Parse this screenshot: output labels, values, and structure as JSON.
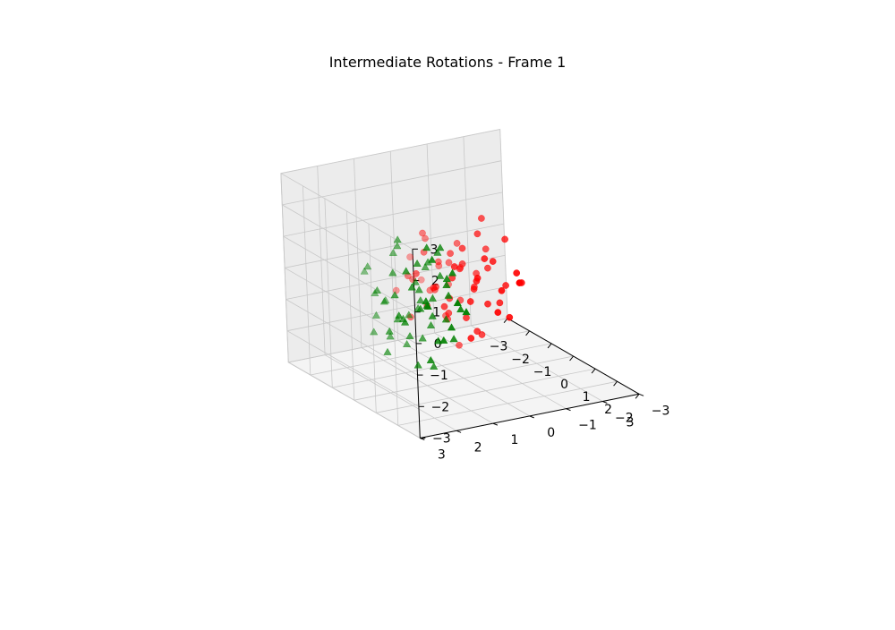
{
  "chart_data": {
    "type": "scatter",
    "projection": "3d",
    "title": "Intermediate Rotations - Frame 1",
    "xlabel": "",
    "ylabel": "",
    "zlabel": "",
    "xlim": [
      -3,
      3
    ],
    "ylim": [
      -3,
      3
    ],
    "zlim": [
      -3,
      3
    ],
    "x_ticks": [
      "−3",
      "−2",
      "−1",
      "0",
      "1",
      "2",
      "3"
    ],
    "y_ticks": [
      "−3",
      "−2",
      "−1",
      "0",
      "1",
      "2",
      "3"
    ],
    "z_ticks": [
      "−3",
      "−2",
      "−1",
      "0",
      "1",
      "2",
      "3"
    ],
    "grid": true,
    "series": [
      {
        "marker": "circle",
        "color": "#ff0000",
        "points": [
          [
            -0.5,
            -0.3,
            0.2
          ],
          [
            -0.2,
            -0.5,
            -0.3
          ],
          [
            -0.8,
            0.1,
            0.4
          ],
          [
            0.3,
            -0.2,
            -0.1
          ],
          [
            -1.1,
            -0.6,
            0.7
          ],
          [
            0.1,
            0.4,
            -0.8
          ],
          [
            -0.4,
            -1.0,
            0.1
          ],
          [
            0.6,
            -0.1,
            0.3
          ],
          [
            -0.9,
            0.3,
            -0.5
          ],
          [
            0.2,
            -0.8,
            0.6
          ],
          [
            -0.3,
            0.2,
            -1.2
          ],
          [
            0.4,
            -0.5,
            -0.6
          ],
          [
            -1.3,
            -0.2,
            0.0
          ],
          [
            -0.6,
            0.6,
            0.9
          ],
          [
            0.8,
            0.2,
            -0.2
          ],
          [
            -0.1,
            -1.3,
            -0.4
          ],
          [
            -0.7,
            -0.4,
            -0.9
          ],
          [
            0.5,
            0.5,
            0.5
          ],
          [
            -1.0,
            0.7,
            -0.1
          ],
          [
            0.0,
            -0.1,
            1.1
          ],
          [
            -0.2,
            0.8,
            -0.6
          ],
          [
            0.9,
            -0.6,
            0.0
          ],
          [
            -1.5,
            -0.9,
            -0.3
          ],
          [
            -0.4,
            0.0,
            0.8
          ],
          [
            0.3,
            0.9,
            0.2
          ],
          [
            -0.8,
            -1.2,
            0.5
          ],
          [
            0.7,
            -0.9,
            -1.0
          ],
          [
            -0.5,
            0.4,
            -0.3
          ],
          [
            -1.2,
            0.2,
            1.0
          ],
          [
            0.2,
            -0.3,
            -1.5
          ],
          [
            -0.3,
            -0.7,
            1.3
          ],
          [
            1.0,
            0.1,
            0.6
          ],
          [
            -0.9,
            -0.1,
            -1.4
          ],
          [
            -0.1,
            0.6,
            0.0
          ],
          [
            0.6,
            -1.2,
            0.3
          ],
          [
            -1.6,
            0.4,
            0.3
          ],
          [
            0.4,
            0.1,
            -0.9
          ],
          [
            -0.6,
            -0.8,
            -0.1
          ],
          [
            1.2,
            -0.3,
            -0.5
          ],
          [
            -0.2,
            -0.2,
            0.5
          ],
          [
            -0.7,
            1.0,
            0.2
          ],
          [
            0.1,
            -1.0,
            -0.8
          ],
          [
            -1.4,
            -0.5,
            -0.7
          ],
          [
            0.8,
            0.6,
            1.0
          ],
          [
            -0.4,
            -1.5,
            0.9
          ],
          [
            0.0,
            0.3,
            -0.4
          ],
          [
            -1.0,
            -0.3,
            0.2
          ],
          [
            0.5,
            -0.4,
            0.9
          ],
          [
            -0.3,
            1.2,
            -0.9
          ],
          [
            1.1,
            0.4,
            -1.2
          ],
          [
            -0.8,
            0.5,
            1.4
          ],
          [
            0.3,
            -1.5,
            -0.2
          ],
          [
            -1.8,
            0.0,
            -0.6
          ],
          [
            -0.1,
            -0.6,
            -1.8
          ],
          [
            0.6,
            0.8,
            -0.3
          ],
          [
            -0.5,
            -0.2,
            -2.2
          ],
          [
            1.4,
            -0.8,
            0.4
          ],
          [
            -1.1,
            1.1,
            -0.4
          ],
          [
            0.2,
            1.3,
            0.7
          ],
          [
            -0.6,
            -1.0,
            1.6
          ]
        ]
      },
      {
        "marker": "triangle",
        "color": "#008000",
        "points": [
          [
            0.5,
            1.5,
            0.6
          ],
          [
            1.2,
            1.8,
            0.1
          ],
          [
            0.8,
            2.2,
            -0.3
          ],
          [
            1.6,
            1.3,
            0.9
          ],
          [
            0.3,
            2.5,
            0.4
          ],
          [
            1.0,
            1.0,
            -0.5
          ],
          [
            1.9,
            2.0,
            0.5
          ],
          [
            0.6,
            1.2,
            1.2
          ],
          [
            1.4,
            2.6,
            0.8
          ],
          [
            0.9,
            1.6,
            -1.0
          ],
          [
            2.1,
            1.5,
            -0.2
          ],
          [
            0.2,
            1.9,
            1.5
          ],
          [
            1.7,
            2.3,
            1.1
          ],
          [
            1.1,
            1.4,
            0.3
          ],
          [
            0.7,
            2.8,
            -0.6
          ],
          [
            1.5,
            1.1,
            -0.9
          ],
          [
            0.4,
            1.4,
            -0.3
          ],
          [
            2.0,
            2.7,
            0.2
          ],
          [
            1.3,
            1.9,
            1.6
          ],
          [
            0.8,
            1.0,
            0.8
          ],
          [
            1.8,
            1.7,
            -0.7
          ],
          [
            0.1,
            2.1,
            0.0
          ],
          [
            1.0,
            2.4,
            1.3
          ],
          [
            1.6,
            2.9,
            -0.2
          ],
          [
            0.5,
            1.8,
            -1.3
          ],
          [
            2.2,
            2.2,
            0.7
          ],
          [
            1.2,
            1.2,
            1.9
          ],
          [
            0.9,
            2.6,
            0.4
          ],
          [
            1.4,
            1.6,
            -0.1
          ],
          [
            0.3,
            1.1,
            0.9
          ],
          [
            1.9,
            1.3,
            1.4
          ],
          [
            0.6,
            2.3,
            -0.9
          ],
          [
            1.1,
            2.9,
            0.9
          ],
          [
            2.4,
            1.9,
            -0.4
          ],
          [
            0.7,
            1.5,
            0.1
          ],
          [
            1.5,
            2.1,
            -1.5
          ],
          [
            0.2,
            2.7,
            1.1
          ],
          [
            1.8,
            2.5,
            1.7
          ],
          [
            1.0,
            1.7,
            0.6
          ],
          [
            2.3,
            1.2,
            0.3
          ],
          [
            0.4,
            1.9,
            1.8
          ],
          [
            1.3,
            2.8,
            -1.0
          ],
          [
            0.8,
            1.3,
            -0.7
          ],
          [
            1.7,
            1.0,
            0.1
          ],
          [
            2.5,
            2.4,
            1.0
          ],
          [
            0.6,
            2.0,
            2.1
          ],
          [
            1.2,
            1.5,
            -1.8
          ],
          [
            1.9,
            2.8,
            0.4
          ],
          [
            0.3,
            1.6,
            -0.5
          ],
          [
            1.6,
            1.8,
            2.2
          ],
          [
            2.1,
            2.1,
            -1.1
          ],
          [
            0.9,
            1.1,
            1.6
          ],
          [
            1.4,
            2.4,
            0.0
          ],
          [
            0.5,
            2.6,
            -0.2
          ],
          [
            2.6,
            1.6,
            0.8
          ],
          [
            1.0,
            2.0,
            -0.8
          ],
          [
            1.8,
            1.4,
            1.2
          ],
          [
            0.7,
            2.9,
            1.5
          ],
          [
            1.5,
            1.2,
            0.5
          ],
          [
            2.0,
            1.9,
            2.0
          ]
        ]
      }
    ]
  }
}
